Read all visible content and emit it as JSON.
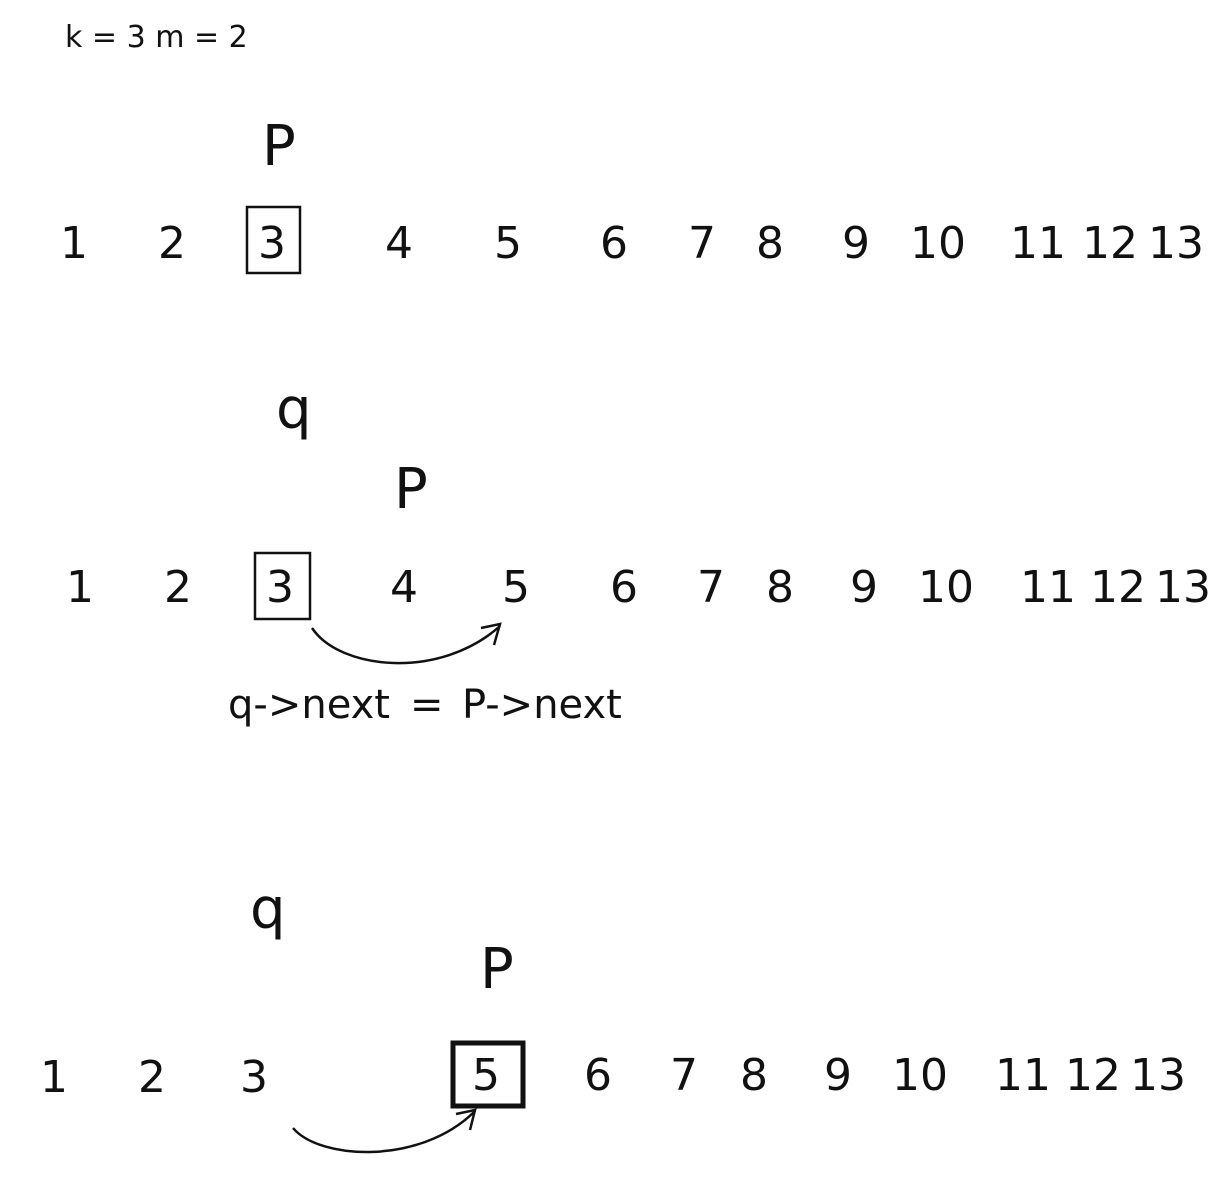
{
  "header": {
    "text": "k = 3   m = 2"
  },
  "frames": [
    {
      "numbers": [
        "1",
        "2",
        "3",
        "4",
        "5",
        "6",
        "7",
        "8",
        "9",
        "10",
        "11",
        "12",
        "13"
      ],
      "boxed": "3",
      "pointers": {
        "p": "P"
      }
    },
    {
      "numbers": [
        "1",
        "2",
        "3",
        "4",
        "5",
        "6",
        "7",
        "8",
        "9",
        "10",
        "11",
        "12",
        "13"
      ],
      "boxed": "3",
      "pointers": {
        "q": "q",
        "p": "P"
      },
      "arrow_from": "3",
      "arrow_to": "5",
      "expression": {
        "left": "q->next",
        "eq": "=",
        "right": "P->next"
      }
    },
    {
      "numbers": [
        "1",
        "2",
        "3",
        "5",
        "6",
        "7",
        "8",
        "9",
        "10",
        "11",
        "12",
        "13"
      ],
      "boxed": "5",
      "pointers": {
        "q": "q",
        "p": "P"
      },
      "arrow_from": "3",
      "arrow_to": "5"
    }
  ]
}
